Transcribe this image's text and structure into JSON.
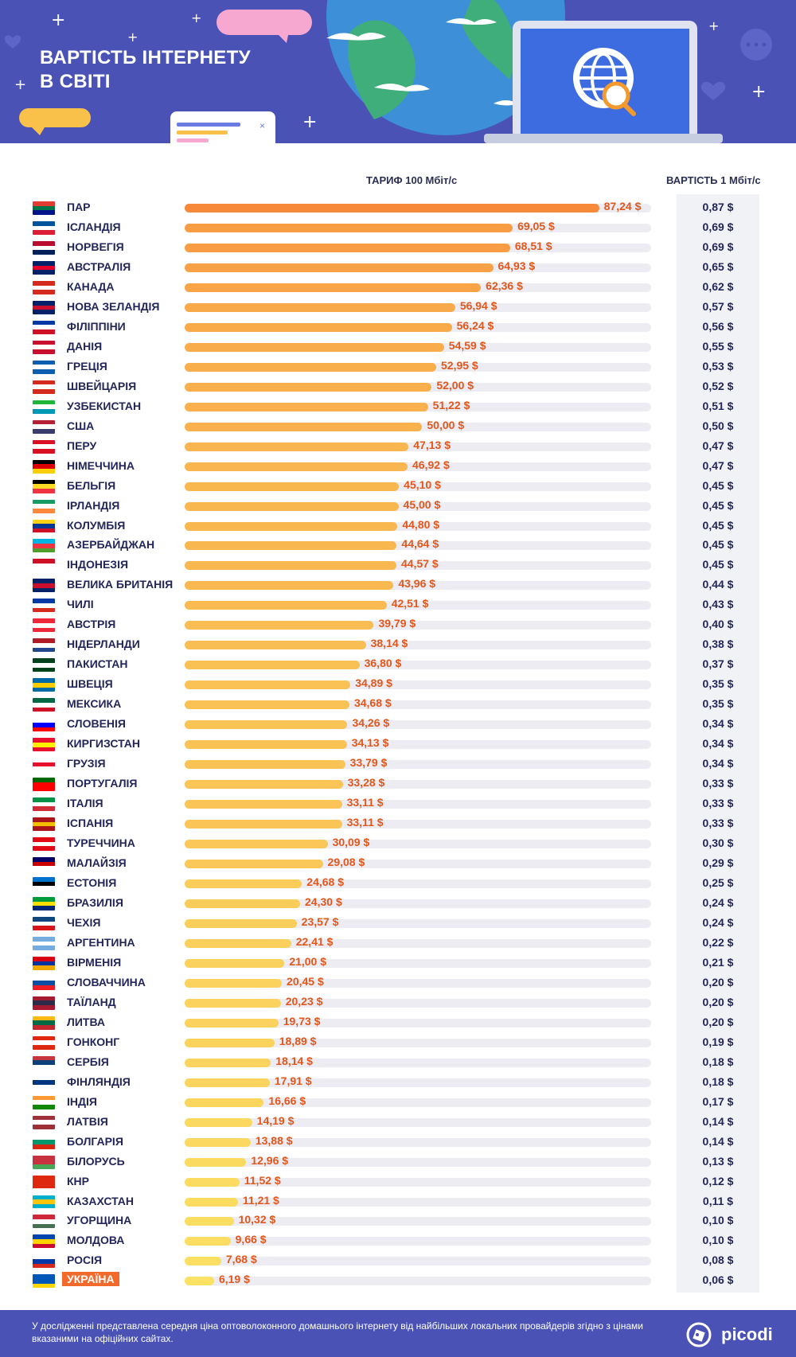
{
  "header": {
    "title_line1": "ВАРТІСТЬ ІНТЕРНЕТУ",
    "title_line2": "В СВІТІ"
  },
  "columns": {
    "tariff": "ТАРИФ 100 Мбіт/с",
    "cost_per_mbit": "ВАРТІСТЬ 1 Мбіт/с"
  },
  "colors": {
    "bar_max": "#f7893a",
    "bar_min": "#fbe164",
    "value_text": "#e2571b",
    "highlight": "#f26a2b",
    "brand_blue": "#4a52b6"
  },
  "chart_data": {
    "type": "bar",
    "orientation": "horizontal",
    "xlim": [
      0,
      100
    ],
    "grid": false,
    "categories": [
      "ПАР",
      "ІСЛАНДІЯ",
      "НОРВЕГІЯ",
      "АВСТРАЛІЯ",
      "КАНАДА",
      "НОВА ЗЕЛАНДІЯ",
      "ФІЛІППІНИ",
      "ДАНІЯ",
      "ГРЕЦІЯ",
      "ШВЕЙЦАРІЯ",
      "УЗБЕКИСТАН",
      "США",
      "ПЕРУ",
      "НІМЕЧЧИНА",
      "БЕЛЬГІЯ",
      "ІРЛАНДІЯ",
      "КОЛУМБІЯ",
      "АЗЕРБАЙДЖАН",
      "ІНДОНЕЗІЯ",
      "ВЕЛИКА БРИТАНІЯ",
      "ЧИЛІ",
      "АВСТРІЯ",
      "НІДЕРЛАНДИ",
      "ПАКИСТАН",
      "ШВЕЦІЯ",
      "МЕКСИКА",
      "СЛОВЕНІЯ",
      "КИРГИЗСТАН",
      "ГРУЗІЯ",
      "ПОРТУГАЛІЯ",
      "ІТАЛІЯ",
      "ІСПАНІЯ",
      "ТУРЕЧЧИНА",
      "МАЛАЙЗІЯ",
      "ЕСТОНІЯ",
      "БРАЗИЛІЯ",
      "ЧЕХІЯ",
      "АРГЕНТИНА",
      "ВІРМЕНІЯ",
      "СЛОВАЧЧИНА",
      "ТАЇЛАНД",
      "ЛИТВА",
      "ГОНКОНГ",
      "СЕРБІЯ",
      "ФІНЛЯНДІЯ",
      "ІНДІЯ",
      "ЛАТВІЯ",
      "БОЛГАРІЯ",
      "БІЛОРУСЬ",
      "КНР",
      "КАЗАХСТАН",
      "УГОРЩИНА",
      "МОЛДОВА",
      "РОСІЯ",
      "УКРАЇНА"
    ],
    "values": [
      87.24,
      69.05,
      68.51,
      64.93,
      62.36,
      56.94,
      56.24,
      54.59,
      52.95,
      52.0,
      51.22,
      50.0,
      47.13,
      46.92,
      45.1,
      45.0,
      44.8,
      44.64,
      44.57,
      43.96,
      42.51,
      39.79,
      38.14,
      36.8,
      34.89,
      34.68,
      34.26,
      34.13,
      33.79,
      33.28,
      33.11,
      33.11,
      30.09,
      29.08,
      24.68,
      24.3,
      23.57,
      22.41,
      21.0,
      20.45,
      20.23,
      19.73,
      18.89,
      18.14,
      17.91,
      16.66,
      14.19,
      13.88,
      12.96,
      11.52,
      11.21,
      10.32,
      9.66,
      7.68,
      6.19
    ],
    "value_labels": [
      "87,24 $",
      "69,05 $",
      "68,51 $",
      "64,93 $",
      "62,36 $",
      "56,94 $",
      "56,24 $",
      "54,59 $",
      "52,95 $",
      "52,00 $",
      "51,22 $",
      "50,00 $",
      "47,13 $",
      "46,92 $",
      "45,10 $",
      "45,00 $",
      "44,80 $",
      "44,64 $",
      "44,57 $",
      "43,96 $",
      "42,51 $",
      "39,79 $",
      "38,14 $",
      "36,80 $",
      "34,89 $",
      "34,68 $",
      "34,26 $",
      "34,13 $",
      "33,79 $",
      "33,28 $",
      "33,11 $",
      "33,11 $",
      "30,09 $",
      "29,08 $",
      "24,68 $",
      "24,30 $",
      "23,57 $",
      "22,41 $",
      "21,00 $",
      "20,45 $",
      "20,23 $",
      "19,73 $",
      "18,89 $",
      "18,14 $",
      "17,91 $",
      "16,66 $",
      "14,19 $",
      "13,88 $",
      "12,96 $",
      "11,52 $",
      "11,21 $",
      "10,32 $",
      "9,66 $",
      "7,68 $",
      "6,19 $"
    ],
    "cost_per_mbit": [
      "0,87 $",
      "0,69 $",
      "0,69 $",
      "0,65 $",
      "0,62 $",
      "0,57 $",
      "0,56 $",
      "0,55 $",
      "0,53 $",
      "0,52 $",
      "0,51 $",
      "0,50 $",
      "0,47 $",
      "0,47 $",
      "0,45 $",
      "0,45 $",
      "0,45 $",
      "0,45 $",
      "0,45 $",
      "0,44 $",
      "0,43 $",
      "0,40 $",
      "0,38 $",
      "0,37 $",
      "0,35 $",
      "0,35 $",
      "0,34 $",
      "0,34 $",
      "0,34 $",
      "0,33 $",
      "0,33 $",
      "0,33 $",
      "0,30 $",
      "0,29 $",
      "0,25 $",
      "0,24 $",
      "0,24 $",
      "0,22 $",
      "0,21 $",
      "0,20 $",
      "0,20 $",
      "0,20 $",
      "0,19 $",
      "0,18 $",
      "0,18 $",
      "0,17 $",
      "0,14 $",
      "0,14 $",
      "0,13 $",
      "0,12 $",
      "0,11 $",
      "0,10 $",
      "0,10 $",
      "0,08 $",
      "0,06 $"
    ],
    "highlighted_category": "УКРАЇНА"
  },
  "flags": [
    [
      "#e03c31",
      "#007749",
      "#001489"
    ],
    [
      "#02529c",
      "#ffffff",
      "#dc1e35"
    ],
    [
      "#ba0c2f",
      "#ffffff",
      "#00205b"
    ],
    [
      "#012169",
      "#e4002b",
      "#012169"
    ],
    [
      "#d52b1e",
      "#ffffff",
      "#d52b1e"
    ],
    [
      "#012169",
      "#c8102e",
      "#012169"
    ],
    [
      "#0038a8",
      "#ffffff",
      "#ce1126"
    ],
    [
      "#c8102e",
      "#ffffff",
      "#c8102e"
    ],
    [
      "#0d5eaf",
      "#ffffff",
      "#0d5eaf"
    ],
    [
      "#d52b1e",
      "#ffffff",
      "#d52b1e"
    ],
    [
      "#1eb53a",
      "#ffffff",
      "#0099b5"
    ],
    [
      "#b22234",
      "#ffffff",
      "#3c3b6e"
    ],
    [
      "#d91023",
      "#ffffff",
      "#d91023"
    ],
    [
      "#000000",
      "#dd0000",
      "#ffce00"
    ],
    [
      "#000000",
      "#fdda24",
      "#ef3340"
    ],
    [
      "#169b62",
      "#ffffff",
      "#ff883e"
    ],
    [
      "#fcd116",
      "#003893",
      "#ce1126"
    ],
    [
      "#00b5e2",
      "#ef3340",
      "#509e2f"
    ],
    [
      "#ce1126",
      "#ffffff",
      "#ffffff"
    ],
    [
      "#012169",
      "#c8102e",
      "#012169"
    ],
    [
      "#0039a6",
      "#ffffff",
      "#d52b1e"
    ],
    [
      "#ed2939",
      "#ffffff",
      "#ed2939"
    ],
    [
      "#ae1c28",
      "#ffffff",
      "#21468b"
    ],
    [
      "#01411c",
      "#ffffff",
      "#01411c"
    ],
    [
      "#006aa7",
      "#fecc00",
      "#006aa7"
    ],
    [
      "#006847",
      "#ffffff",
      "#ce1126"
    ],
    [
      "#ffffff",
      "#0000ff",
      "#ff0000"
    ],
    [
      "#e8112d",
      "#ffef00",
      "#e8112d"
    ],
    [
      "#ffffff",
      "#e8112d",
      "#ffffff"
    ],
    [
      "#006600",
      "#ff0000",
      "#ff0000"
    ],
    [
      "#009246",
      "#ffffff",
      "#ce2b37"
    ],
    [
      "#aa151b",
      "#f1bf00",
      "#aa151b"
    ],
    [
      "#e30a17",
      "#ffffff",
      "#e30a17"
    ],
    [
      "#010066",
      "#cc0001",
      "#ffffff"
    ],
    [
      "#0072ce",
      "#000000",
      "#ffffff"
    ],
    [
      "#009c3b",
      "#ffdf00",
      "#002776"
    ],
    [
      "#11457e",
      "#ffffff",
      "#d7141a"
    ],
    [
      "#74acdf",
      "#ffffff",
      "#74acdf"
    ],
    [
      "#d90012",
      "#0033a0",
      "#f2a800"
    ],
    [
      "#ffffff",
      "#0b4ea2",
      "#ee1c25"
    ],
    [
      "#a51931",
      "#2d2a4a",
      "#a51931"
    ],
    [
      "#fdb913",
      "#006a44",
      "#c1272d"
    ],
    [
      "#de2910",
      "#ffffff",
      "#de2910"
    ],
    [
      "#c6363c",
      "#0c4076",
      "#ffffff"
    ],
    [
      "#ffffff",
      "#003580",
      "#ffffff"
    ],
    [
      "#ff9933",
      "#ffffff",
      "#138808"
    ],
    [
      "#9e3039",
      "#ffffff",
      "#9e3039"
    ],
    [
      "#ffffff",
      "#00966e",
      "#d62612"
    ],
    [
      "#c8313e",
      "#c8313e",
      "#4aa657"
    ],
    [
      "#de2910",
      "#de2910",
      "#de2910"
    ],
    [
      "#00afca",
      "#fec50c",
      "#00afca"
    ],
    [
      "#ce2939",
      "#ffffff",
      "#477050"
    ],
    [
      "#0046ae",
      "#ffd200",
      "#cc092f"
    ],
    [
      "#ffffff",
      "#0039a6",
      "#d52b1e"
    ],
    [
      "#0057b7",
      "#0057b7",
      "#ffd700"
    ]
  ],
  "footer": {
    "note": "У дослідженні представлена середня ціна оптоволоконного домашнього інтернету від найбільших локальних провайдерів згідно з цінами вказаними на офіційних сайтах.",
    "logo": "picodi"
  }
}
